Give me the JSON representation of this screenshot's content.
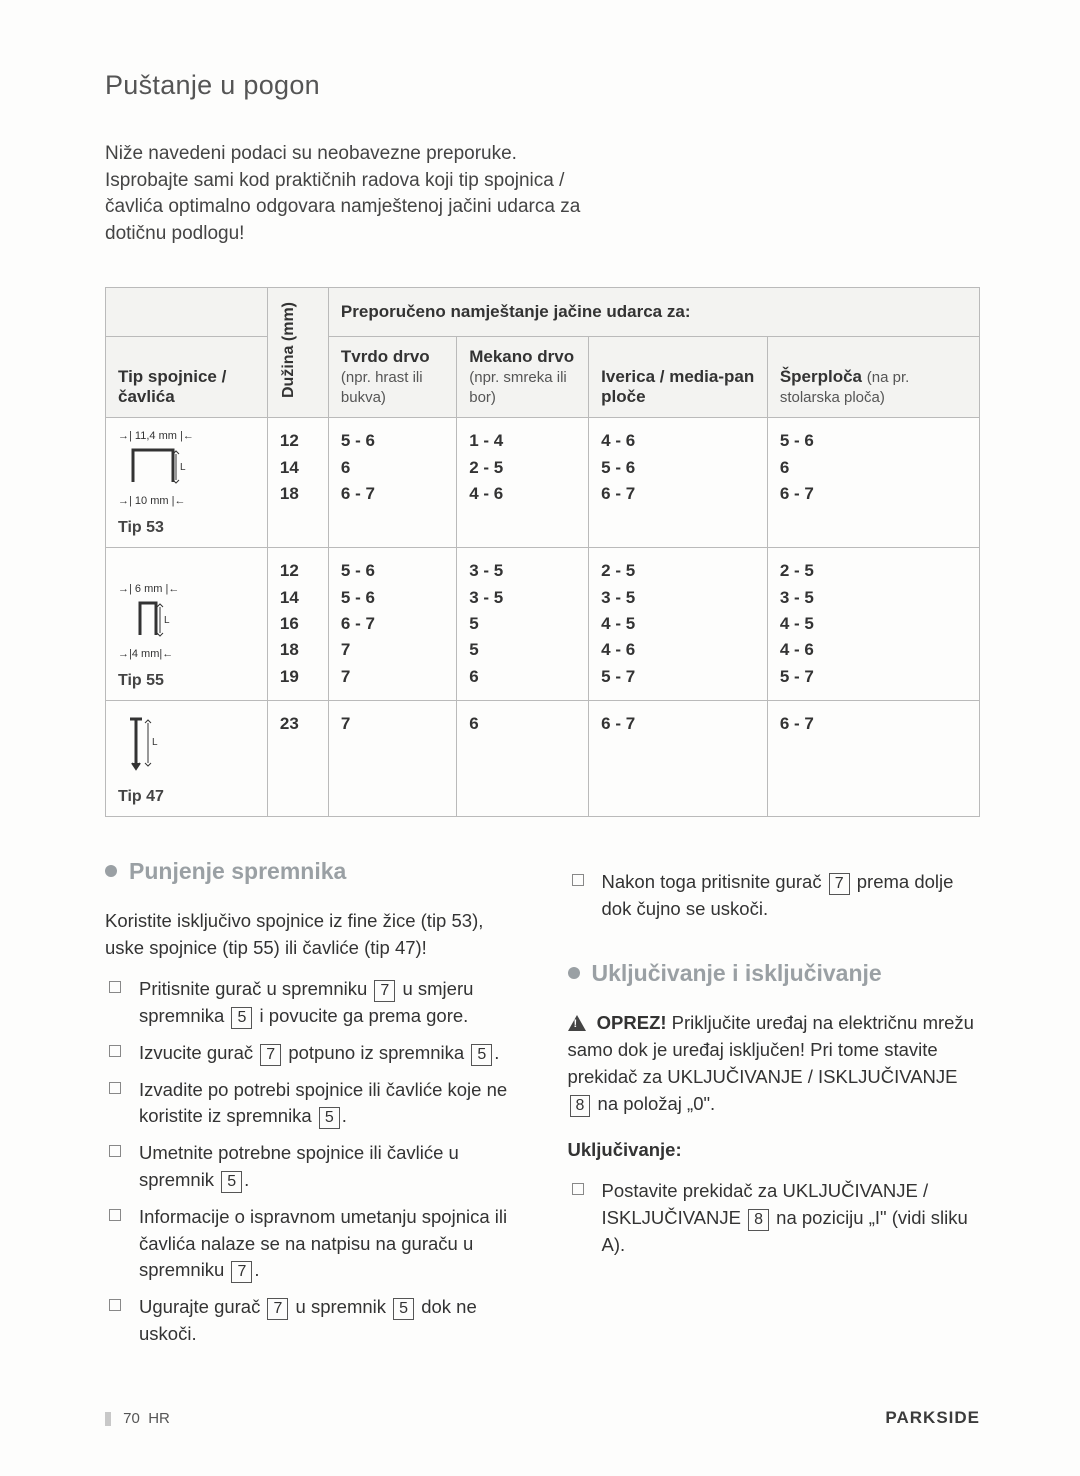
{
  "page_title": "Puštanje u pogon",
  "intro": "Niže navedeni podaci su neobavezne preporuke. Isprobajte sami kod praktičnih radova koji tip spojnica / čavlića optimalno odgovara namještenoj jačini udarca za dotičnu podlogu!",
  "table": {
    "recommend_header": "Preporučeno namještanje jačine udarca za:",
    "col_tip": "Tip spojnice / čavlića",
    "col_len": "Dužina (mm)",
    "cols": [
      {
        "head": "Tvrdo drvo",
        "sub": "(npr. hrast ili bukva)"
      },
      {
        "head": "Mekano drvo",
        "sub": "(npr. smreka ili bor)"
      },
      {
        "head": "Iverica / media-pan ploče",
        "sub": ""
      },
      {
        "head": "Šperploča",
        "sub": "(na pr. stolarska ploča)"
      }
    ],
    "rows": [
      {
        "tip": "Tip 53",
        "icon": {
          "top": "11,4 mm",
          "bottom": "10 mm",
          "kind": "staple"
        },
        "lens": [
          "12",
          "14",
          "18"
        ],
        "data": [
          [
            "5 - 6",
            "6",
            "6 - 7"
          ],
          [
            "1 - 4",
            "2 - 5",
            "4 - 6"
          ],
          [
            "4 - 6",
            "5 - 6",
            "6 - 7"
          ],
          [
            "5 - 6",
            "6",
            "6 - 7"
          ]
        ]
      },
      {
        "tip": "Tip 55",
        "icon": {
          "top": "6 mm",
          "bottom": "4 mm",
          "kind": "narrow"
        },
        "lens": [
          "12",
          "14",
          "16",
          "18",
          "19"
        ],
        "data": [
          [
            "5 - 6",
            "5 - 6",
            "6 - 7",
            "7",
            "7"
          ],
          [
            "3 - 5",
            "3 - 5",
            "5",
            "5",
            "6"
          ],
          [
            "2 - 5",
            "3 - 5",
            "4 - 5",
            "4 - 6",
            "5 - 7"
          ],
          [
            "2 - 5",
            "3 - 5",
            "4 - 5",
            "4 - 6",
            "5 - 7"
          ]
        ]
      },
      {
        "tip": "Tip 47",
        "icon": {
          "top": "",
          "bottom": "",
          "kind": "nail"
        },
        "lens": [
          "23"
        ],
        "data": [
          [
            "7"
          ],
          [
            "6"
          ],
          [
            "6 - 7"
          ],
          [
            "6 - 7"
          ]
        ]
      }
    ]
  },
  "left": {
    "h": "Punjenje spremnika",
    "lead": "Koristite isključivo spojnice iz fine žice (tip 53), uske spojnice (tip 55) ili čavliće (tip 47)!",
    "items": [
      {
        "pre": "Pritisnite gurač u spremniku ",
        "r1": "7",
        "mid": " u smjeru spremnika ",
        "r2": "5",
        "post": " i povucite ga prema gore."
      },
      {
        "pre": "Izvucite gurač ",
        "r1": "7",
        "mid": " potpuno iz spremnika ",
        "r2": "5",
        "post": "."
      },
      {
        "pre": "Izvadite po potrebi spojnice ili čavliće koje ne koristite iz spremnika ",
        "r1": "5",
        "mid": "",
        "r2": "",
        "post": "."
      },
      {
        "pre": "Umetnite potrebne spojnice ili čavliće u spremnik ",
        "r1": "5",
        "mid": "",
        "r2": "",
        "post": "."
      },
      {
        "pre": "Informacije o ispravnom umetanju spojnica ili čavlića nalaze se na natpisu na guraču u spremniku ",
        "r1": "7",
        "mid": "",
        "r2": "",
        "post": "."
      },
      {
        "pre": "Ugurajte gurač ",
        "r1": "7",
        "mid": " u spremnik ",
        "r2": "5",
        "post": " dok ne uskoči."
      }
    ]
  },
  "right": {
    "top_item": {
      "pre": "Nakon toga pritisnite gurač ",
      "r1": "7",
      "post": " prema dolje dok čujno se uskoči."
    },
    "h": "Uključivanje i isključivanje",
    "warn_label": "OPREZ!",
    "warn_text_a": " Priključite uređaj na električnu mrežu samo dok je uređaj isključen! Pri tome stavite prekidač za UKLJUČIVANJE / ISKLJUČIVANJE ",
    "warn_ref": "8",
    "warn_text_b": " na položaj „0\".",
    "sub": "Uključivanje:",
    "on_item": {
      "pre": "Postavite prekidač za UKLJUČIVANJE / ISKLJUČIVANJE ",
      "r1": "8",
      "post": " na poziciju „I\" (vidi sliku A)."
    }
  },
  "footer": {
    "page": "70",
    "lang": "HR",
    "brand": "PARKSIDE"
  }
}
